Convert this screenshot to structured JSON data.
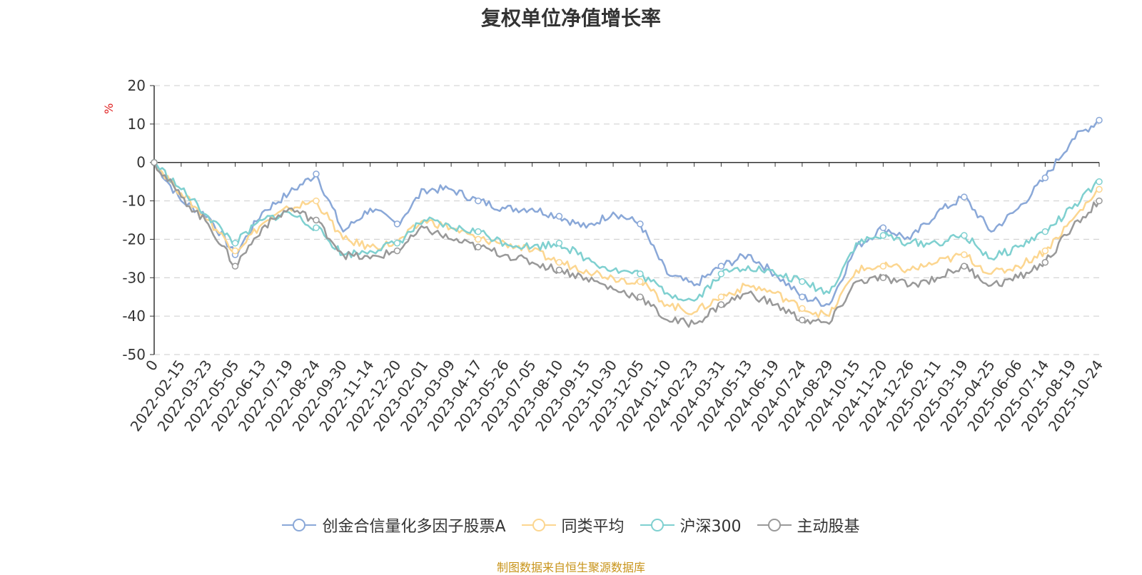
{
  "chart_data": {
    "type": "line",
    "title": "复权单位净值增长率",
    "ylabel": "%",
    "xlabel": "",
    "ylim": [
      -50,
      20
    ],
    "yticks": [
      20,
      10,
      0,
      -10,
      -20,
      -30,
      -40,
      -50
    ],
    "grid": true,
    "legend_position": "bottom",
    "categories": [
      "0",
      "2022-02-15",
      "2022-03-23",
      "2022-05-05",
      "2022-06-13",
      "2022-07-19",
      "2022-08-24",
      "2022-09-30",
      "2022-11-14",
      "2022-12-20",
      "2023-02-01",
      "2023-03-09",
      "2023-04-17",
      "2023-05-26",
      "2023-07-05",
      "2023-08-10",
      "2023-09-15",
      "2023-10-30",
      "2023-12-05",
      "2024-01-10",
      "2024-02-23",
      "2024-03-31",
      "2024-05-13",
      "2024-06-19",
      "2024-07-24",
      "2024-08-29",
      "2024-10-15",
      "2024-11-20",
      "2024-12-26",
      "2025-02-11",
      "2025-03-19",
      "2025-04-25",
      "2025-06-06",
      "2025-07-14",
      "2025-08-19",
      "2025-10-24"
    ],
    "series": [
      {
        "name": "创金合信量化多因子股票A",
        "color": "#8aa8d8",
        "values": [
          0,
          -10,
          -14,
          -24,
          -13,
          -8,
          -3,
          -18,
          -12,
          -16,
          -7,
          -7,
          -10,
          -12,
          -12,
          -14,
          -17,
          -13,
          -16,
          -29,
          -32,
          -27,
          -24,
          -29,
          -35,
          -37,
          -22,
          -17,
          -20,
          -13,
          -9,
          -18,
          -12,
          -4,
          6,
          11
        ]
      },
      {
        "name": "同类平均",
        "color": "#fcd690",
        "values": [
          0,
          -8,
          -15,
          -23,
          -16,
          -12,
          -10,
          -20,
          -22,
          -21,
          -15,
          -17,
          -20,
          -21,
          -23,
          -26,
          -28,
          -30,
          -31,
          -37,
          -39,
          -35,
          -32,
          -34,
          -38,
          -40,
          -28,
          -27,
          -28,
          -26,
          -24,
          -29,
          -27,
          -23,
          -15,
          -7
        ]
      },
      {
        "name": "沪深300",
        "color": "#7fd0d0",
        "values": [
          0,
          -7,
          -14,
          -21,
          -15,
          -13,
          -17,
          -24,
          -23,
          -21,
          -15,
          -17,
          -18,
          -21,
          -22,
          -21,
          -25,
          -28,
          -29,
          -34,
          -36,
          -29,
          -27,
          -29,
          -31,
          -34,
          -21,
          -19,
          -21,
          -21,
          -19,
          -25,
          -22,
          -18,
          -12,
          -5
        ]
      },
      {
        "name": "主动股基",
        "color": "#999999",
        "values": [
          0,
          -9,
          -16,
          -27,
          -17,
          -12,
          -15,
          -24,
          -25,
          -23,
          -17,
          -20,
          -22,
          -24,
          -26,
          -28,
          -30,
          -33,
          -35,
          -41,
          -42,
          -37,
          -34,
          -37,
          -41,
          -42,
          -31,
          -30,
          -32,
          -30,
          -27,
          -32,
          -30,
          -26,
          -17,
          -10
        ]
      }
    ]
  },
  "source_text": "制图数据来自恒生聚源数据库"
}
